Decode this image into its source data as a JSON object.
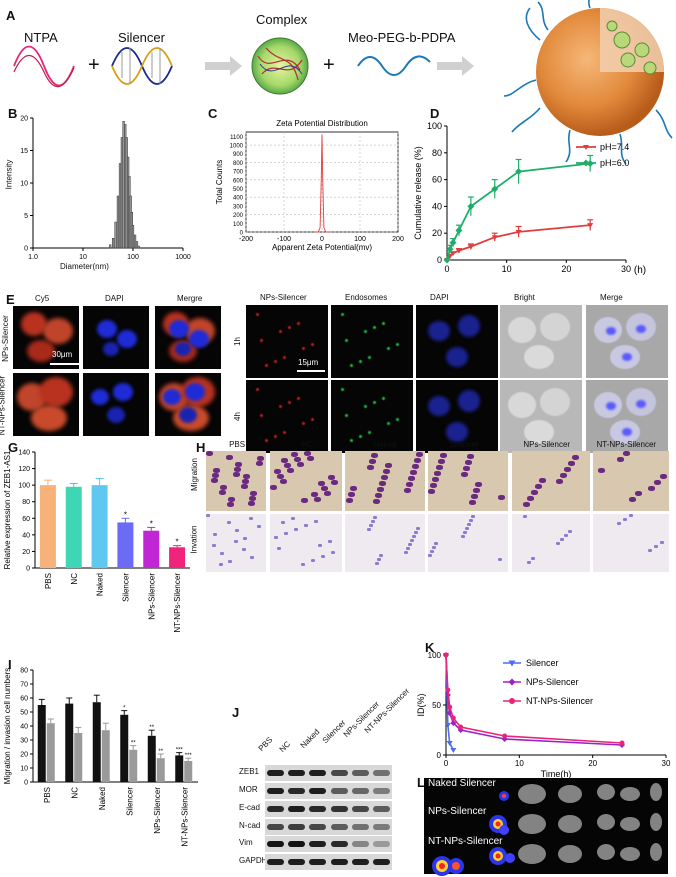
{
  "panels": {
    "A": "A",
    "B": "B",
    "C": "C",
    "D": "D",
    "E": "E",
    "G": "G",
    "H": "H",
    "I": "I",
    "J": "J",
    "K": "K",
    "L": "L"
  },
  "colors": {
    "cy5": "#c0392b",
    "dapi": "#1f2bd6",
    "purple": "#7a2a8a",
    "pink": "#e8247a",
    "green": "#1fae6a",
    "red_ph74": "#e23d3d",
    "blue": "#4d6cf0",
    "magenta": "#c026d3"
  },
  "schematic": {
    "ntpa": "NTPA",
    "plus1": "+",
    "silencer": "Silencer",
    "complex": "Complex",
    "plus2": "+",
    "copolymer": "Meo-PEG-b-PDPA"
  },
  "panel_b": {
    "ylabel": "Intensity",
    "xlabel": "Diameter(nm)",
    "xticks": [
      "1.0",
      "10",
      "100",
      "1000"
    ],
    "yticks": [
      "0",
      "5",
      "10",
      "15",
      "20"
    ]
  },
  "panel_c": {
    "title": "Zeta Potential Distribution",
    "ylabel": "Total Counts",
    "xlabel": "Apparent Zeta Potential(mv)",
    "xticks": [
      "-200",
      "-100",
      "0",
      "100",
      "200"
    ],
    "yticks": [
      "0",
      "100",
      "200",
      "300",
      "400",
      "500",
      "600",
      "700",
      "800",
      "900",
      "1000",
      "1100"
    ]
  },
  "panel_e": {
    "cols_left": [
      "Cy5",
      "DAPI",
      "Mergre"
    ],
    "rows_left": [
      "NPs-Silencer",
      "NT-NPs-Silencer"
    ],
    "scale_left": "30μm",
    "cols_right": [
      "NPs-Silencer",
      "Endosomes",
      "DAPI",
      "Bright",
      "Merge"
    ],
    "rows_right": [
      "1h",
      "4h"
    ],
    "scale_right": "15μm"
  },
  "panel_g": {
    "ylabel": "Relative expression of ZEB1-AS1",
    "yticks": [
      "0",
      "20",
      "40",
      "60",
      "80",
      "100",
      "120",
      "140"
    ]
  },
  "panel_h": {
    "cols": [
      "PBS",
      "NC",
      "Naked",
      "Silencer",
      "NPs-Silencer",
      "NT-NPs-Silencer"
    ],
    "rows": [
      "Migration",
      "Invation"
    ]
  },
  "panel_i": {
    "ylabel": "Migration / invasion cell numbers",
    "yticks": [
      "0",
      "10",
      "20",
      "30",
      "40",
      "50",
      "60",
      "70",
      "80"
    ]
  },
  "panel_j": {
    "cols": [
      "PBS",
      "NC",
      "Naked",
      "Silencer",
      "NPs-Silencer",
      "NT-NPs-Silencer"
    ],
    "rows": [
      "ZEB1",
      "MOR",
      "E-cad",
      "N-cad",
      "Vim",
      "GAPDH"
    ]
  },
  "panel_l": {
    "labels": [
      "Naked Silencer",
      "NPs-Silencer",
      "NT-NPs-Silencer"
    ]
  },
  "chart_data": [
    {
      "type": "bar",
      "panel": "B",
      "xlabel": "Diameter(nm)",
      "ylabel": "Intensity",
      "xscale": "log",
      "xlim": [
        1,
        1000
      ],
      "ylim": [
        0,
        20
      ],
      "x": [
        35,
        40,
        45,
        50,
        55,
        60,
        65,
        70,
        75,
        80,
        85,
        90,
        95,
        100,
        110,
        120,
        130
      ],
      "values": [
        0.5,
        1.5,
        4,
        8,
        13,
        17,
        19.5,
        19,
        17,
        14,
        11,
        8,
        5.5,
        3.5,
        2,
        1,
        0.3
      ]
    },
    {
      "type": "line",
      "panel": "C",
      "title": "Zeta Potential Distribution",
      "xlabel": "Apparent Zeta Potential(mv)",
      "ylabel": "Total Counts",
      "xlim": [
        -200,
        200
      ],
      "ylim": [
        0,
        1100
      ],
      "x": [
        -20,
        -10,
        -5,
        -2,
        0,
        2,
        5,
        10,
        20
      ],
      "values": [
        0,
        0,
        50,
        600,
        1120,
        600,
        50,
        0,
        0
      ]
    },
    {
      "type": "line",
      "panel": "D",
      "xlabel": "(h)",
      "ylabel": "Cumulative release (%)",
      "xlim": [
        0,
        30
      ],
      "ylim": [
        0,
        100
      ],
      "legend": "right",
      "series": [
        {
          "name": "pH=7.4",
          "color": "#e23d3d",
          "x": [
            0,
            0.5,
            1,
            2,
            4,
            8,
            12,
            24
          ],
          "values": [
            0,
            3,
            5,
            7,
            10,
            17,
            21,
            26
          ],
          "err": [
            0,
            1,
            1,
            1.5,
            2,
            3,
            4,
            4
          ]
        },
        {
          "name": "pH=6.0",
          "color": "#1fae6a",
          "x": [
            0,
            0.5,
            1,
            2,
            4,
            8,
            12,
            24
          ],
          "values": [
            0,
            8,
            13,
            22,
            40,
            53,
            66,
            72
          ],
          "err": [
            0,
            3,
            3,
            4,
            7,
            7,
            9,
            6
          ]
        }
      ]
    },
    {
      "type": "bar",
      "panel": "G",
      "ylabel": "Relative expression of ZEB1-AS1",
      "ylim": [
        0,
        140
      ],
      "categories": [
        "PBS",
        "NC",
        "Naked",
        "Silencer",
        "NPs-Silencer",
        "NT-NPs-Silencer"
      ],
      "values": [
        100,
        98,
        100,
        55,
        45,
        25
      ],
      "err": [
        6,
        4,
        8,
        5,
        4,
        2
      ],
      "sig": [
        "",
        "",
        "",
        "*",
        "*",
        "*"
      ],
      "bar_colors": [
        "#f7b27a",
        "#3fd6b5",
        "#5ec8f0",
        "#6b6bf5",
        "#c026d3",
        "#f0247a"
      ]
    },
    {
      "type": "bar",
      "panel": "I",
      "ylabel": "Migration / invasion cell numbers",
      "ylim": [
        0,
        80
      ],
      "categories": [
        "PBS",
        "NC",
        "Naked",
        "Silencer",
        "NPs-Silencer",
        "NT-NPs-Silencer"
      ],
      "series": [
        {
          "name": "Migration",
          "color": "#111111",
          "values": [
            55,
            56,
            57,
            48,
            33,
            19
          ],
          "err": [
            4,
            4,
            5,
            3,
            4,
            2
          ],
          "sig": [
            "",
            "",
            "",
            "*",
            "**",
            "***"
          ]
        },
        {
          "name": "Invasion",
          "color": "#9a9a9a",
          "values": [
            42,
            35,
            37,
            23,
            17,
            15
          ],
          "err": [
            3,
            4,
            5,
            3,
            3,
            2
          ],
          "sig": [
            "",
            "",
            "",
            "**",
            "**",
            "***"
          ]
        }
      ]
    },
    {
      "type": "line",
      "panel": "K",
      "xlabel": "Time(h)",
      "ylabel": "ID(%)",
      "xlim": [
        0,
        30
      ],
      "ylim": [
        0,
        100
      ],
      "legend": "right",
      "series": [
        {
          "name": "Silencer",
          "color": "#4d6cf0",
          "marker": "triangle-down",
          "x": [
            0,
            0.25,
            0.5,
            1
          ],
          "values": [
            100,
            30,
            12,
            5
          ]
        },
        {
          "name": "NPs-Silencer",
          "color": "#a020c8",
          "marker": "diamond",
          "x": [
            0,
            0.25,
            0.5,
            1,
            2,
            8,
            24
          ],
          "values": [
            100,
            60,
            42,
            32,
            25,
            16,
            10
          ]
        },
        {
          "name": "NT-NPs-Silencer",
          "color": "#e8247a",
          "marker": "circle",
          "x": [
            0,
            0.25,
            0.5,
            1,
            2,
            8,
            24
          ],
          "values": [
            100,
            65,
            48,
            37,
            28,
            19,
            12
          ]
        }
      ]
    }
  ]
}
